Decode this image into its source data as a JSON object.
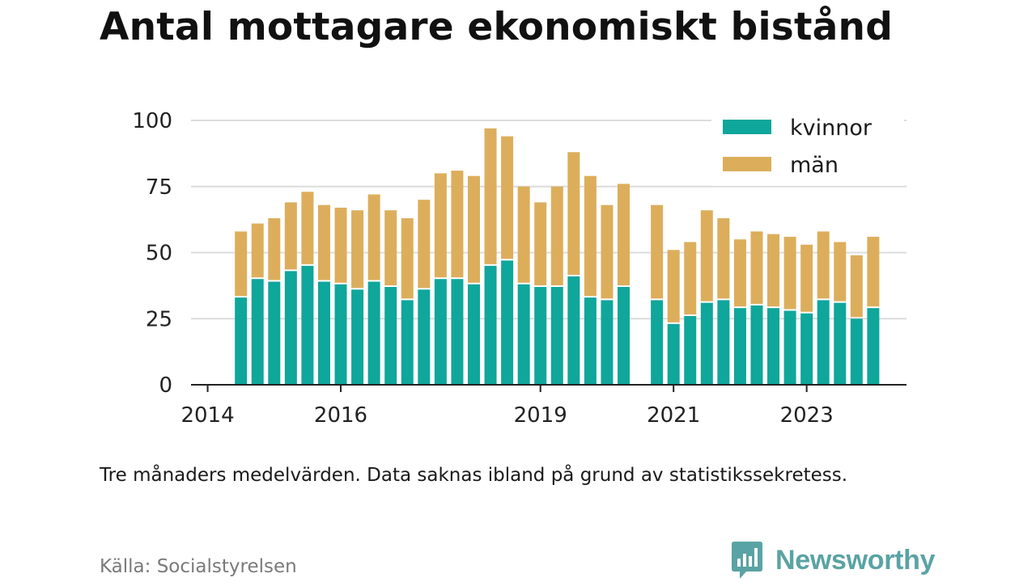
{
  "title": "Antal mottagare ekonomiskt bistånd",
  "note": "Tre månaders medelvärden. Data saknas ibland på grund av statistikssekretess.",
  "source": "Källa: Socialstyrelsen",
  "brand": "Newsworthy",
  "colors": {
    "kvinnor": "#0fa69b",
    "man": "#dcae5c",
    "grid": "#dcdcdc",
    "axis": "#222222",
    "brand": "#5aa3a4"
  },
  "chart_data": {
    "type": "bar",
    "stacked": true,
    "ylim": [
      0,
      100
    ],
    "yticks": [
      0,
      25,
      50,
      75,
      100
    ],
    "xlim": [
      2013.75,
      2024.5
    ],
    "xticks": [
      2014,
      2016,
      2019,
      2021,
      2023
    ],
    "legend_position": "top-right",
    "x": [
      2014.5,
      2014.75,
      2015.0,
      2015.25,
      2015.5,
      2015.75,
      2016.0,
      2016.25,
      2016.5,
      2016.75,
      2017.0,
      2017.25,
      2017.5,
      2017.75,
      2018.0,
      2018.25,
      2018.5,
      2018.75,
      2019.0,
      2019.25,
      2019.5,
      2019.75,
      2020.0,
      2020.25,
      2020.75,
      2021.0,
      2021.25,
      2021.5,
      2021.75,
      2022.0,
      2022.25,
      2022.5,
      2022.75,
      2023.0,
      2023.25,
      2023.5,
      2023.75,
      2024.0
    ],
    "series": [
      {
        "name": "kvinnor",
        "values": [
          33,
          40,
          39,
          43,
          45,
          39,
          38,
          36,
          39,
          37,
          32,
          36,
          40,
          40,
          38,
          45,
          47,
          38,
          37,
          37,
          41,
          33,
          32,
          37,
          32,
          23,
          26,
          31,
          32,
          29,
          30,
          29,
          28,
          27,
          32,
          31,
          25,
          29
        ]
      },
      {
        "name": "män",
        "values": [
          25,
          21,
          24,
          26,
          28,
          29,
          29,
          30,
          33,
          29,
          31,
          34,
          40,
          41,
          41,
          52,
          47,
          37,
          32,
          38,
          47,
          46,
          36,
          39,
          36,
          28,
          28,
          35,
          31,
          26,
          28,
          28,
          28,
          26,
          26,
          23,
          24,
          27
        ]
      }
    ]
  }
}
